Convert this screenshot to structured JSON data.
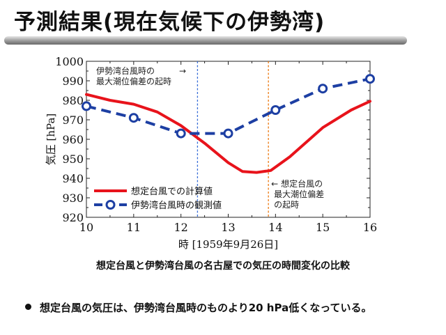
{
  "title": "予測結果(現在気候下の伊勢湾)",
  "caption": "想定台風と伊勢湾台風の名古屋での気圧の時間変化の比較",
  "bullet": "想定台風の気圧は、伊勢湾台風時のものより20 hPa低くなっている。",
  "colors": {
    "red": "#e8131b",
    "blue": "#1d3fa3",
    "blue_vline": "#3a6fd8",
    "orange_vline": "#ec7a12"
  },
  "chart_data": {
    "type": "line",
    "xlabel": "時 [1959年9月26日]",
    "ylabel": "気圧 [hPa]",
    "xlim": [
      10,
      16
    ],
    "ylim": [
      920,
      1000
    ],
    "xticks": [
      10,
      11,
      12,
      13,
      14,
      15,
      16
    ],
    "yticks": [
      920,
      930,
      940,
      950,
      960,
      970,
      980,
      990,
      1000
    ],
    "series": [
      {
        "name": "想定台風での計算値",
        "color": "#e8131b",
        "style": "solid",
        "x": [
          10,
          10.5,
          11,
          11.5,
          12,
          12.5,
          13,
          13.3,
          13.6,
          13.9,
          14.3,
          15,
          15.6,
          16
        ],
        "y": [
          983,
          980,
          978,
          974,
          967,
          958,
          948,
          943.5,
          943,
          944,
          951,
          966,
          975,
          979.5
        ]
      },
      {
        "name": "伊勢湾台風時の観測値",
        "color": "#1d3fa3",
        "style": "dashed",
        "markers": "open-circle",
        "x": [
          10,
          11,
          12,
          13,
          14,
          15,
          16
        ],
        "y": [
          977,
          971,
          963,
          963,
          975,
          986,
          991
        ]
      }
    ],
    "vlines": [
      {
        "x": 12.35,
        "color": "#3a6fd8",
        "label": [
          "伊勢湾台風時の",
          "最大潮位偏差の起時"
        ],
        "arrow": "→"
      },
      {
        "x": 13.85,
        "color": "#ec7a12",
        "label": [
          "想定台風の",
          "最大潮位偏差",
          "の起時"
        ],
        "arrow": "←"
      }
    ]
  }
}
